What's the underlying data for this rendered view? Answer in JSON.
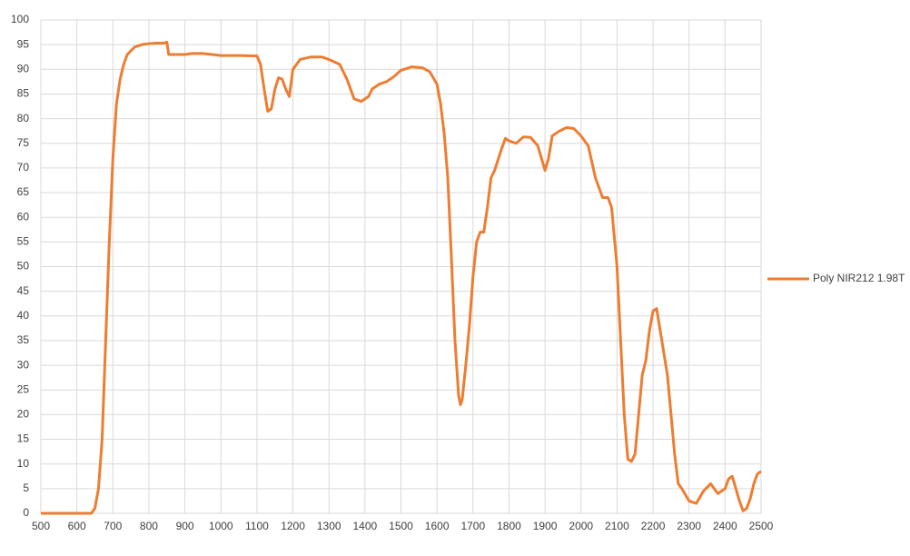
{
  "chart_data": {
    "type": "line",
    "x": [
      500,
      600,
      640,
      650,
      660,
      670,
      680,
      690,
      700,
      710,
      720,
      730,
      740,
      760,
      780,
      800,
      820,
      840,
      850,
      855,
      880,
      900,
      920,
      950,
      1000,
      1050,
      1100,
      1110,
      1120,
      1130,
      1140,
      1150,
      1160,
      1170,
      1180,
      1190,
      1200,
      1220,
      1250,
      1280,
      1300,
      1330,
      1350,
      1370,
      1390,
      1410,
      1420,
      1440,
      1460,
      1480,
      1500,
      1530,
      1560,
      1580,
      1600,
      1610,
      1620,
      1630,
      1640,
      1650,
      1660,
      1665,
      1670,
      1680,
      1690,
      1700,
      1710,
      1720,
      1730,
      1740,
      1750,
      1760,
      1780,
      1790,
      1800,
      1820,
      1840,
      1860,
      1880,
      1900,
      1910,
      1920,
      1940,
      1960,
      1980,
      2000,
      2020,
      2040,
      2060,
      2075,
      2085,
      2100,
      2110,
      2120,
      2130,
      2140,
      2150,
      2160,
      2170,
      2180,
      2190,
      2200,
      2210,
      2220,
      2240,
      2250,
      2260,
      2270,
      2280,
      2300,
      2320,
      2340,
      2360,
      2370,
      2380,
      2400,
      2410,
      2420,
      2430,
      2440,
      2450,
      2460,
      2470,
      2480,
      2490,
      2500
    ],
    "series": [
      {
        "name": "Poly NIR212 1.98T",
        "color": "#ed7d31",
        "values": [
          0,
          0,
          0,
          1,
          5,
          15,
          35,
          55,
          72,
          83,
          88,
          91,
          93,
          94.5,
          95,
          95.2,
          95.3,
          95.3,
          95.5,
          93,
          93,
          93,
          93.2,
          93.2,
          92.8,
          92.8,
          92.7,
          91,
          86,
          81.5,
          82,
          86,
          88.3,
          88,
          86,
          84.5,
          90,
          92,
          92.5,
          92.5,
          92,
          91,
          88,
          84,
          83.5,
          84.5,
          86,
          87,
          87.5,
          88.5,
          89.8,
          90.5,
          90.3,
          89.5,
          87,
          83,
          77,
          68,
          52,
          35,
          24,
          22,
          23,
          30,
          38,
          48,
          55,
          57,
          57,
          62,
          68,
          69.5,
          74,
          76,
          75.5,
          75,
          76.3,
          76.2,
          74.5,
          69.5,
          72,
          76.5,
          77.5,
          78.2,
          78,
          76.5,
          74.5,
          68,
          64,
          64,
          62,
          50,
          35,
          20,
          11,
          10.5,
          12,
          20,
          28,
          31,
          37,
          41,
          41.5,
          37,
          28,
          20,
          12,
          6,
          5,
          2.5,
          2,
          4.5,
          6,
          5,
          4,
          5,
          7,
          7.5,
          5,
          2.5,
          0.5,
          1,
          3,
          6,
          8,
          8.5
        ]
      }
    ],
    "xlim": [
      500,
      2500
    ],
    "xticks": [
      500,
      600,
      700,
      800,
      900,
      1000,
      1100,
      1200,
      1300,
      1400,
      1500,
      1600,
      1700,
      1800,
      1900,
      2000,
      2100,
      2200,
      2300,
      2400,
      2500
    ],
    "ylim": [
      0,
      100
    ],
    "yticks": [
      0,
      5,
      10,
      15,
      20,
      25,
      30,
      35,
      40,
      45,
      50,
      55,
      60,
      65,
      70,
      75,
      80,
      85,
      90,
      95,
      100
    ],
    "grid": true,
    "legend": "right"
  }
}
